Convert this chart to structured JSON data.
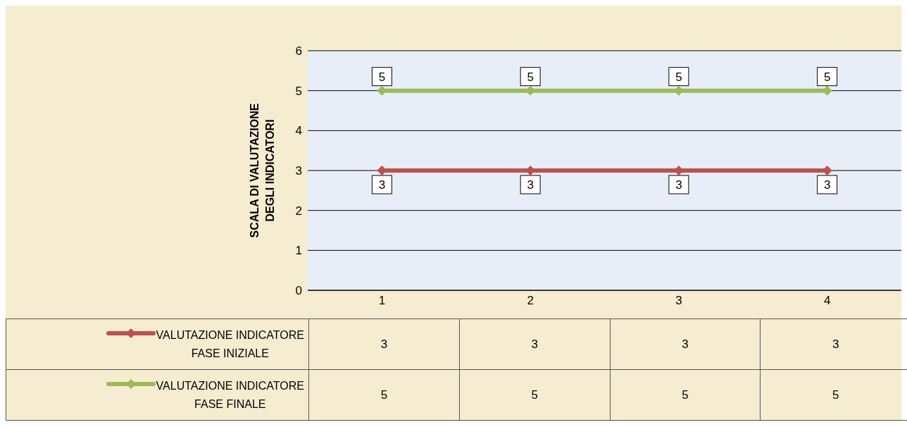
{
  "chart_data": {
    "type": "line",
    "ylabel": "SCALA DI VALUTAZIONE DEGLI INDICATORI",
    "categories": [
      "1",
      "2",
      "3",
      "4"
    ],
    "series": [
      {
        "name": "VALUTAZIONE INDICATORE FASE INIZIALE",
        "color": "#c0504d",
        "values": [
          3,
          3,
          3,
          3
        ]
      },
      {
        "name": "VALUTAZIONE INDICATORE FASE FINALE",
        "color": "#9bbb59",
        "values": [
          5,
          5,
          5,
          5
        ]
      }
    ],
    "annotations": [
      {
        "text": "5",
        "x": "1",
        "y": 5
      },
      {
        "text": "5",
        "x": "2",
        "y": 5
      },
      {
        "text": "5",
        "x": "3",
        "y": 5
      },
      {
        "text": "5",
        "x": "4",
        "y": 5
      },
      {
        "text": "3",
        "x": "1",
        "y": 3
      },
      {
        "text": "3",
        "x": "2",
        "y": 3
      },
      {
        "text": "3",
        "x": "3",
        "y": 3
      },
      {
        "text": "3",
        "x": "4",
        "y": 3
      }
    ],
    "ylim": [
      0,
      6
    ],
    "yticks": [
      0,
      1,
      2,
      3,
      4,
      5,
      6
    ],
    "grid": "y",
    "legend": "bottom",
    "marker": "diamond",
    "line_style": "solid",
    "data_labels": true
  }
}
